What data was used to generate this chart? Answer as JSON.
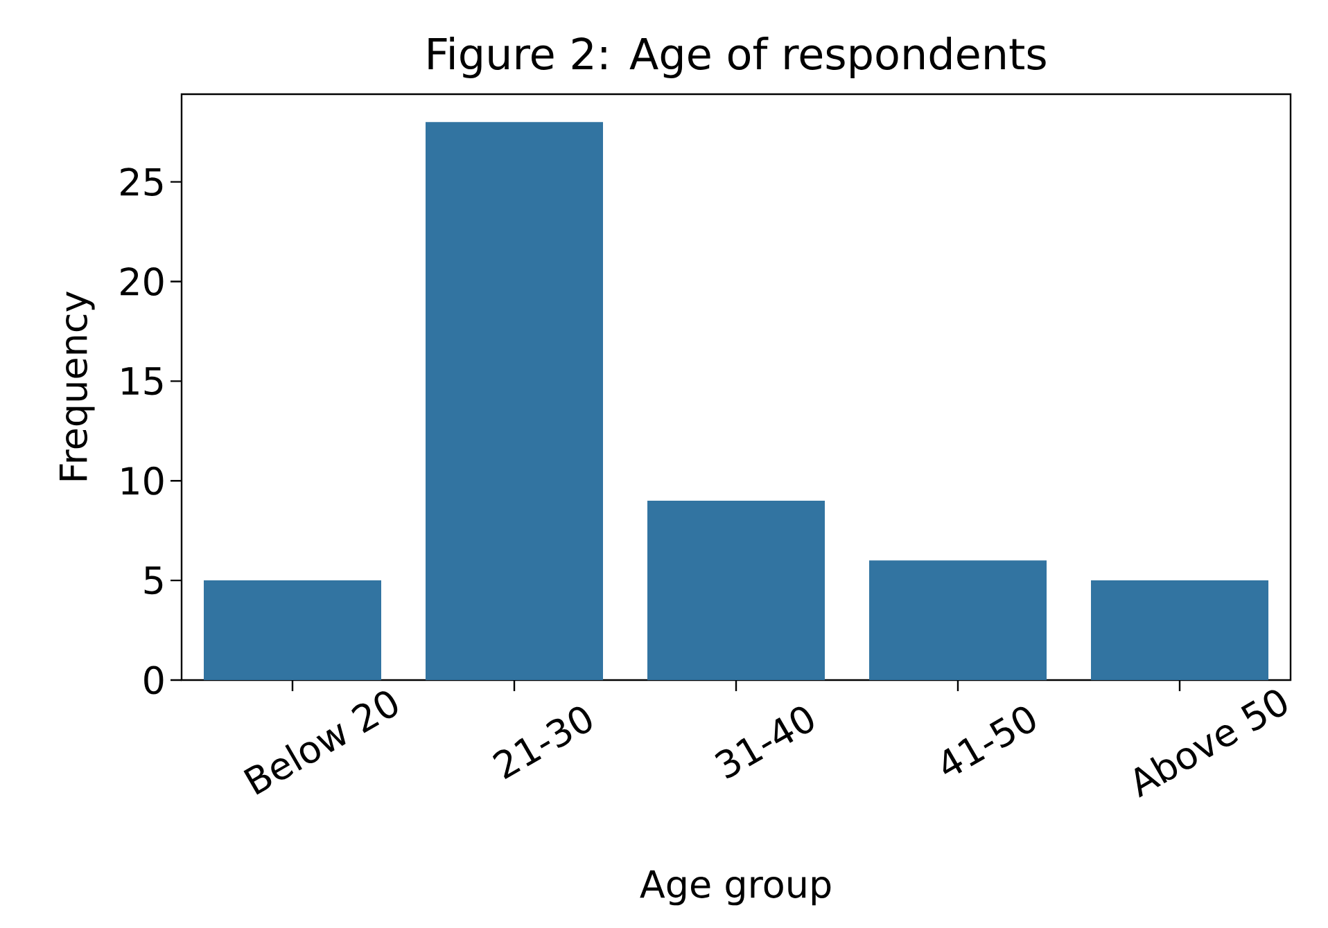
{
  "chart_data": {
    "type": "bar",
    "title": "Figure 2: Age of respondents",
    "xlabel": "Age group",
    "ylabel": "Frequency",
    "categories": [
      "Below 20",
      "21-30",
      "31-40",
      "41-50",
      "Above 50"
    ],
    "values": [
      5,
      28,
      9,
      6,
      5
    ],
    "color": "#3274a1",
    "ylim": [
      0,
      29.4
    ],
    "yticks": [
      0,
      5,
      10,
      15,
      20,
      25
    ]
  }
}
